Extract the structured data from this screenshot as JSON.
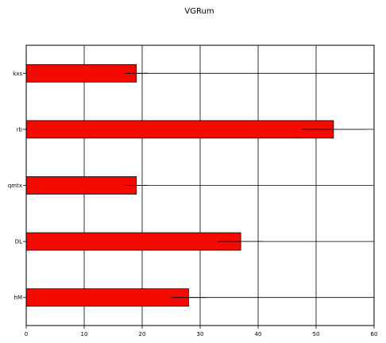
{
  "chart_data": {
    "type": "bar",
    "orientation": "horizontal",
    "title": "VGRum",
    "xlabel": "",
    "ylabel": "",
    "categories": [
      "hM",
      "DL",
      "qmtx",
      "rb",
      "kxs"
    ],
    "values": [
      28,
      37,
      19,
      53,
      19
    ],
    "errors": [
      3,
      4,
      2,
      5.5,
      2
    ],
    "xlim": [
      0,
      60
    ],
    "xticks": [
      0,
      10,
      20,
      30,
      40,
      50,
      60
    ],
    "grid": true,
    "bar_color": "#f50a00",
    "edge_color": "#000000"
  }
}
